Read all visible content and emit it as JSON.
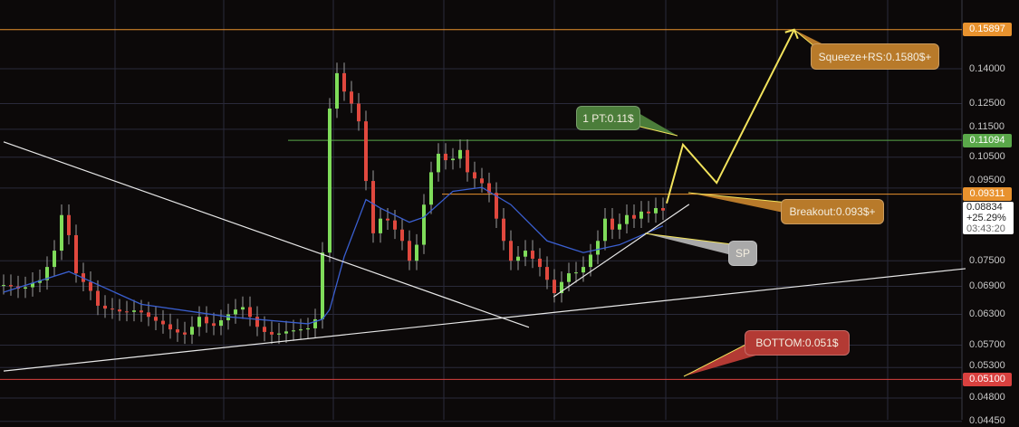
{
  "chart_data": {
    "type": "candlestick",
    "y_scale": "log",
    "ylim": [
      0.0442,
      0.168
    ],
    "grid": true,
    "y_ticks": [
      "0.14000",
      "0.12500",
      "0.11500",
      "0.10500",
      "0.09500",
      "0.07500",
      "0.06900",
      "0.06300",
      "0.05700",
      "0.05300",
      "0.04800",
      "0.04450"
    ],
    "close": [
      0.0693,
      0.069,
      0.0685,
      0.0688,
      0.0698,
      0.0704,
      0.0735,
      0.0775,
      0.087,
      0.0815,
      0.072,
      0.07,
      0.068,
      0.0648,
      0.0642,
      0.064,
      0.0636,
      0.0635,
      0.0638,
      0.0634,
      0.0625,
      0.0617,
      0.061,
      0.06,
      0.0594,
      0.059,
      0.0605,
      0.0625,
      0.0612,
      0.0607,
      0.0618,
      0.063,
      0.064,
      0.0645,
      0.0625,
      0.0605,
      0.0595,
      0.059,
      0.0592,
      0.0596,
      0.0598,
      0.06,
      0.0602,
      0.062,
      0.077,
      0.123,
      0.138,
      0.13,
      0.125,
      0.118,
      0.0972,
      0.082,
      0.086,
      0.0855,
      0.083,
      0.08,
      0.075,
      0.079,
      0.09,
      0.1,
      0.1062,
      0.104,
      0.1045,
      0.1075,
      0.1,
      0.098,
      0.0965,
      0.0935,
      0.086,
      0.08,
      0.075,
      0.076,
      0.0775,
      0.0755,
      0.0735,
      0.0705,
      0.0675,
      0.07,
      0.072,
      0.0722,
      0.0735,
      0.0765,
      0.08,
      0.086,
      0.083,
      0.0845,
      0.087,
      0.086,
      0.088,
      0.0875,
      0.089,
      0.0883
    ],
    "moving_average": [
      [
        0,
        0.0677
      ],
      [
        9,
        0.0724
      ],
      [
        19,
        0.0651
      ],
      [
        31,
        0.0625
      ],
      [
        42,
        0.0611
      ],
      [
        44,
        0.062
      ],
      [
        45,
        0.064
      ],
      [
        47,
        0.076
      ],
      [
        49,
        0.086
      ],
      [
        50,
        0.0915
      ],
      [
        52,
        0.089
      ],
      [
        56,
        0.085
      ],
      [
        58,
        0.0864
      ],
      [
        62,
        0.094
      ],
      [
        66,
        0.0952
      ],
      [
        70,
        0.09
      ],
      [
        75,
        0.08
      ],
      [
        80,
        0.077
      ],
      [
        85,
        0.079
      ],
      [
        91,
        0.084
      ]
    ],
    "trendlines": [
      {
        "name": "descending-resistance",
        "color": "#e8e8e8",
        "points": [
          [
            0,
            0.1104
          ],
          [
            72.5,
            0.0604
          ]
        ]
      },
      {
        "name": "long-support",
        "color": "#e8e8e8",
        "points": [
          [
            0,
            0.0524
          ],
          [
            132.75,
            0.0731
          ]
        ]
      },
      {
        "name": "sp-support",
        "color": "#e8e8e8",
        "points": [
          [
            75.9,
            0.0667
          ],
          [
            94.6,
            0.0901
          ]
        ]
      }
    ],
    "projection": {
      "color": "#f2e35c",
      "points": [
        [
          91.5,
          0.0904
        ],
        [
          93.75,
          0.1094
        ],
        [
          98.4,
          0.0966
        ],
        [
          109.1,
          0.159
        ]
      ]
    },
    "levels": [
      {
        "value": 0.15897,
        "label": "0.15897",
        "color": "#e8922e",
        "from": 0
      },
      {
        "value": 0.11094,
        "label": "0.11094",
        "color": "#5aa84a",
        "from": 39.75
      },
      {
        "value": 0.09311,
        "label": "0.09311",
        "color": "#e8922e",
        "from": 61
      },
      {
        "value": 0.051,
        "label": "0.05100",
        "color": "#d9413f",
        "from": 0
      }
    ],
    "current": {
      "price": "0.08834",
      "change": "+25.29%",
      "countdown": "03:43:20"
    },
    "annotations": [
      {
        "text": "Squeeze+RS:0.1580$+",
        "color": "#b87a2a"
      },
      {
        "text": "1 PT:0.11$",
        "color": "#4b7d3a"
      },
      {
        "text": "Breakout:0.093$+",
        "color": "#b87a2a"
      },
      {
        "text": "SP",
        "color": "#a9a9a9"
      },
      {
        "text": "BOTTOM:0.051$",
        "color": "#b33a34"
      }
    ],
    "colors": {
      "up": "#7fdc5a",
      "down": "#e0483e",
      "ma": "#3a5fd0",
      "grid": "#2a2a3a"
    }
  }
}
